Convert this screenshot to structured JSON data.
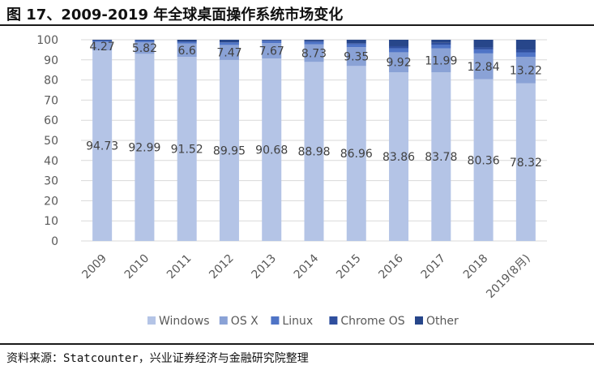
{
  "header": {
    "title": "图 17、2009-2019 年全球桌面操作系统市场变化"
  },
  "footer": {
    "source": "资料来源：Statcounter，兴业证券经济与金融研究院整理"
  },
  "chart_data": {
    "type": "bar",
    "stacked": true,
    "categories": [
      "2009",
      "2010",
      "2011",
      "2012",
      "2013",
      "2014",
      "2015",
      "2016",
      "2017",
      "2018",
      "2019(8月)"
    ],
    "ylim": [
      0,
      100
    ],
    "yticks": [
      0,
      10,
      20,
      30,
      40,
      50,
      60,
      70,
      80,
      90,
      100
    ],
    "grid": true,
    "legend_position": "bottom",
    "series": [
      {
        "name": "Windows",
        "color": "#b4c4e6",
        "values": [
          94.73,
          92.99,
          91.52,
          89.95,
          90.68,
          88.98,
          86.96,
          83.86,
          83.78,
          80.36,
          78.32
        ],
        "labels": [
          "94.73",
          "92.99",
          "91.52",
          "89.95",
          "90.68",
          "88.98",
          "86.96",
          "83.86",
          "83.78",
          "80.36",
          "78.32"
        ]
      },
      {
        "name": "OS X",
        "color": "#8aa2d6",
        "values": [
          4.27,
          5.82,
          6.6,
          7.47,
          7.67,
          8.73,
          9.35,
          9.92,
          11.99,
          12.84,
          13.22
        ],
        "labels": [
          "4.27",
          "5.82",
          "6.6",
          "7.47",
          "7.67",
          "8.73",
          "9.35",
          "9.92",
          "11.99",
          "12.84",
          "13.22"
        ]
      },
      {
        "name": "Linux",
        "color": "#4f74c6",
        "values": [
          0.6,
          0.8,
          0.9,
          1.2,
          1.1,
          1.3,
          1.5,
          2.0,
          1.8,
          2.0,
          2.2
        ]
      },
      {
        "name": "Chrome OS",
        "color": "#2f4f9e",
        "values": [
          0.0,
          0.0,
          0.0,
          0.1,
          0.2,
          0.3,
          0.5,
          1.0,
          0.9,
          1.0,
          1.4
        ]
      },
      {
        "name": "Other",
        "color": "#27468a",
        "values": [
          0.4,
          0.39,
          0.98,
          1.28,
          0.35,
          0.69,
          1.69,
          3.22,
          1.53,
          3.8,
          4.86
        ]
      }
    ]
  }
}
